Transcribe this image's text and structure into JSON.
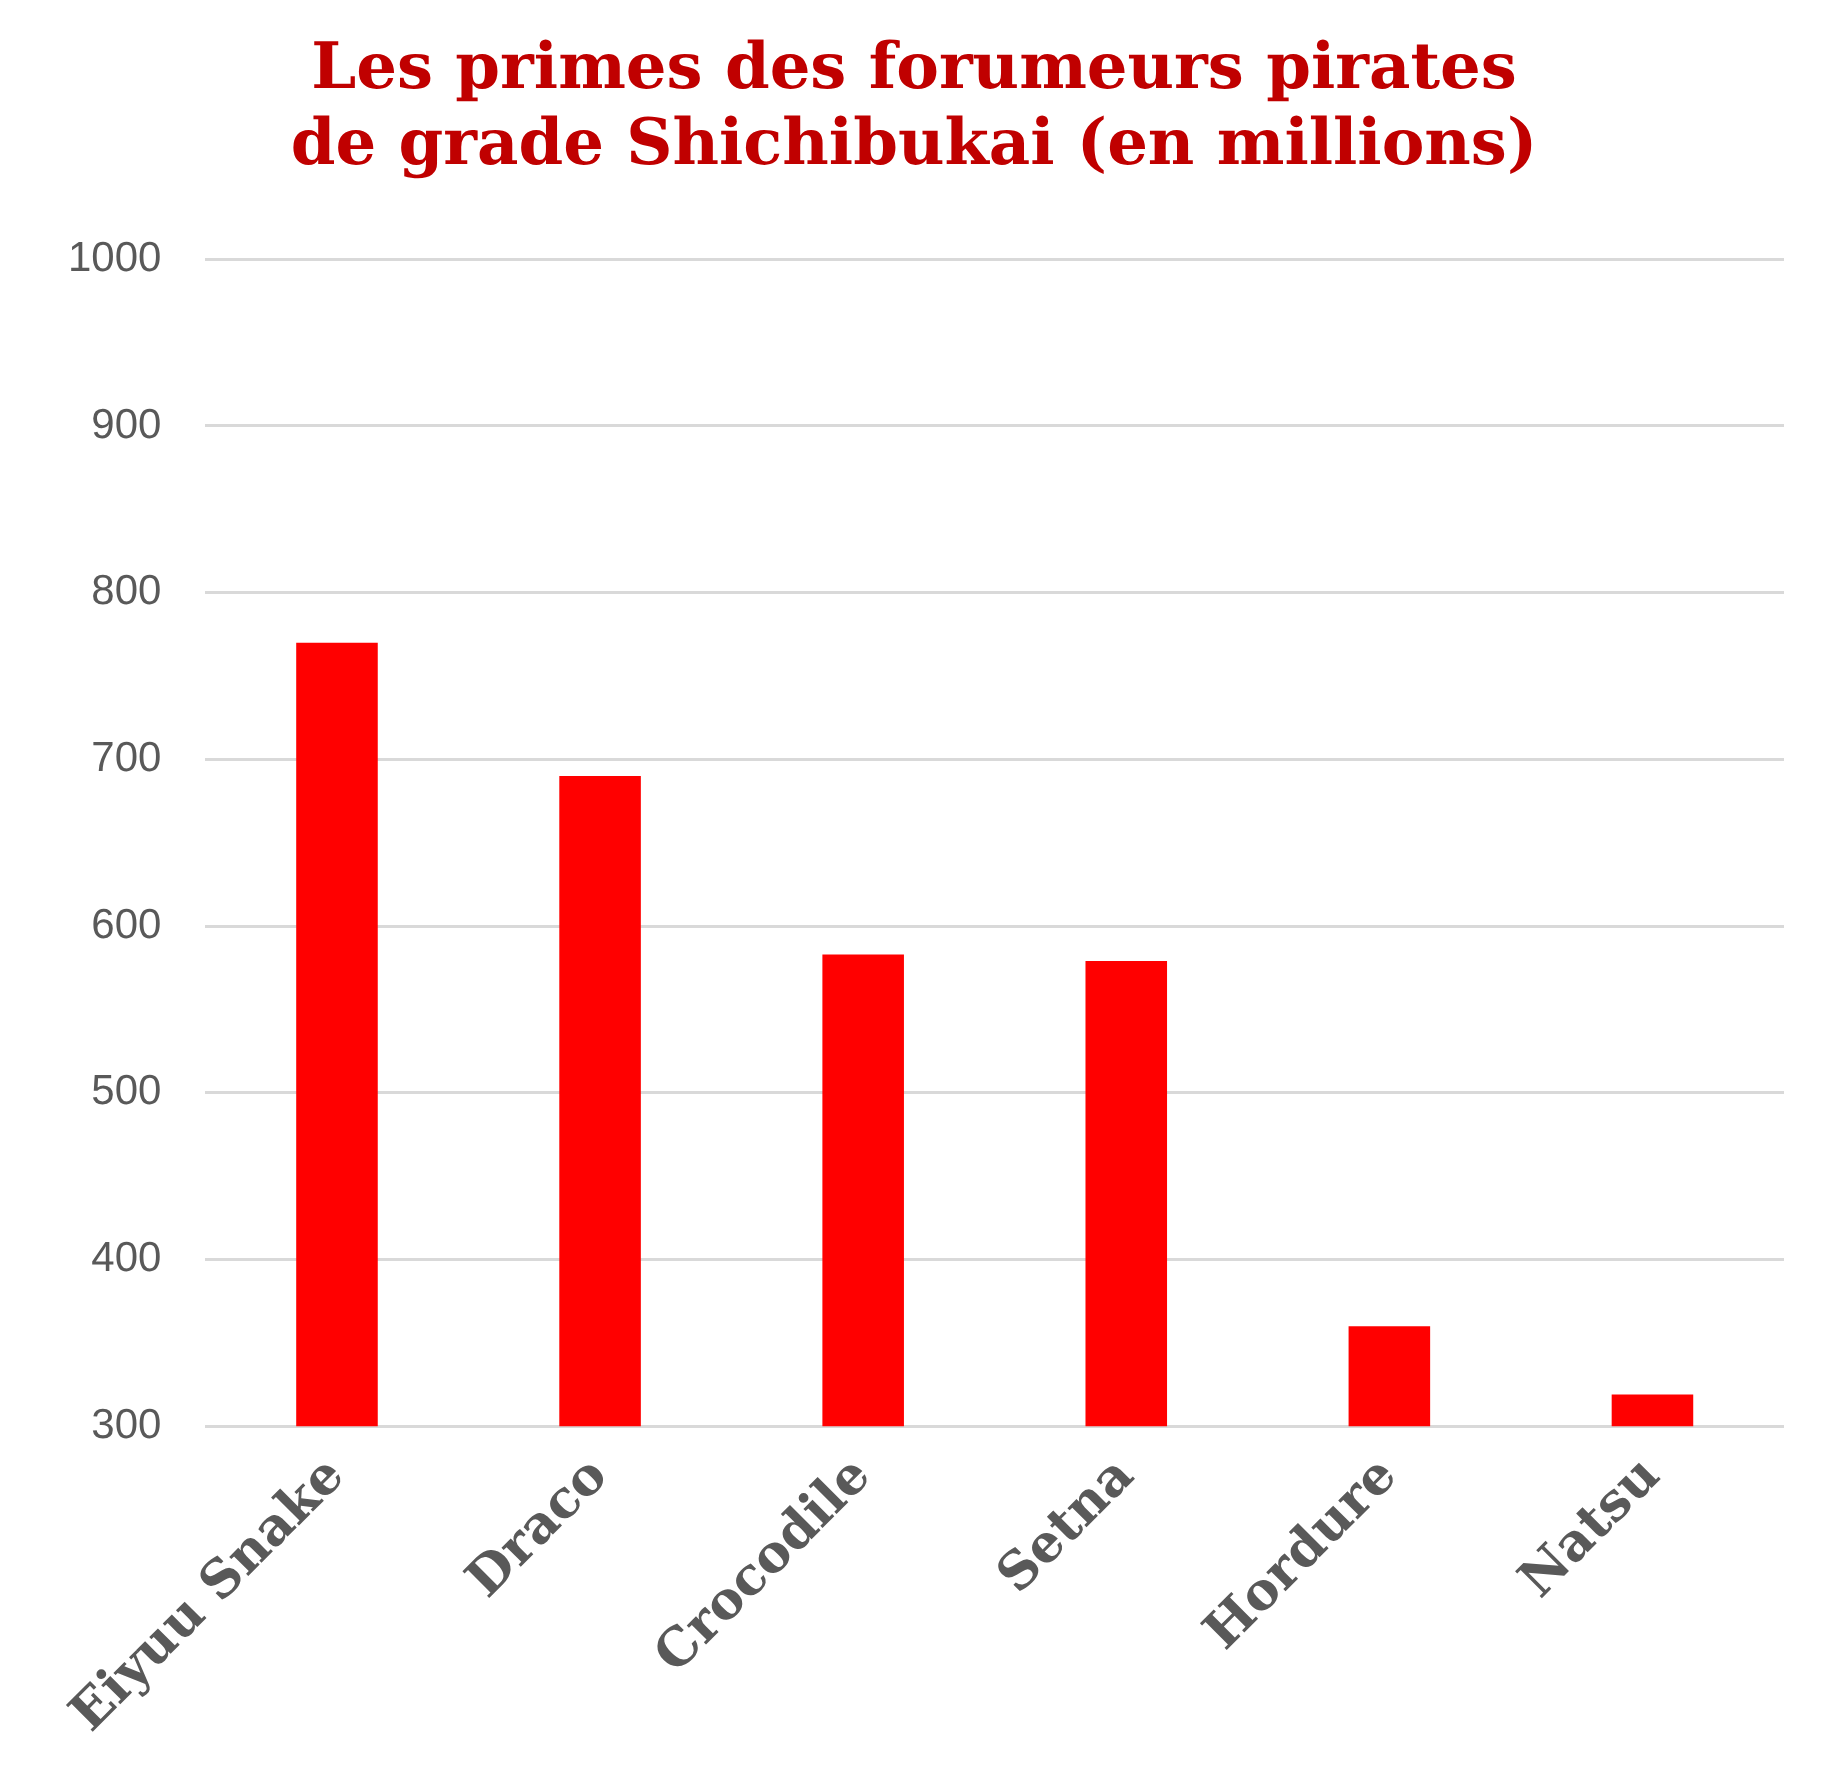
{
  "chart_data": {
    "type": "bar",
    "title": "Les primes des forumeurs pirates de grade Shichibukai (en millions)",
    "categories": [
      "Eiyuu Snake",
      "Draco",
      "Crocodile",
      "Setna",
      "Hordure",
      "Natsu"
    ],
    "values": [
      770,
      690,
      583,
      579,
      360,
      319
    ],
    "color": "#ff0000",
    "ylim": [
      300,
      1000
    ],
    "yticks": [
      300,
      400,
      500,
      600,
      700,
      800,
      900,
      1000
    ],
    "grid": "y"
  }
}
